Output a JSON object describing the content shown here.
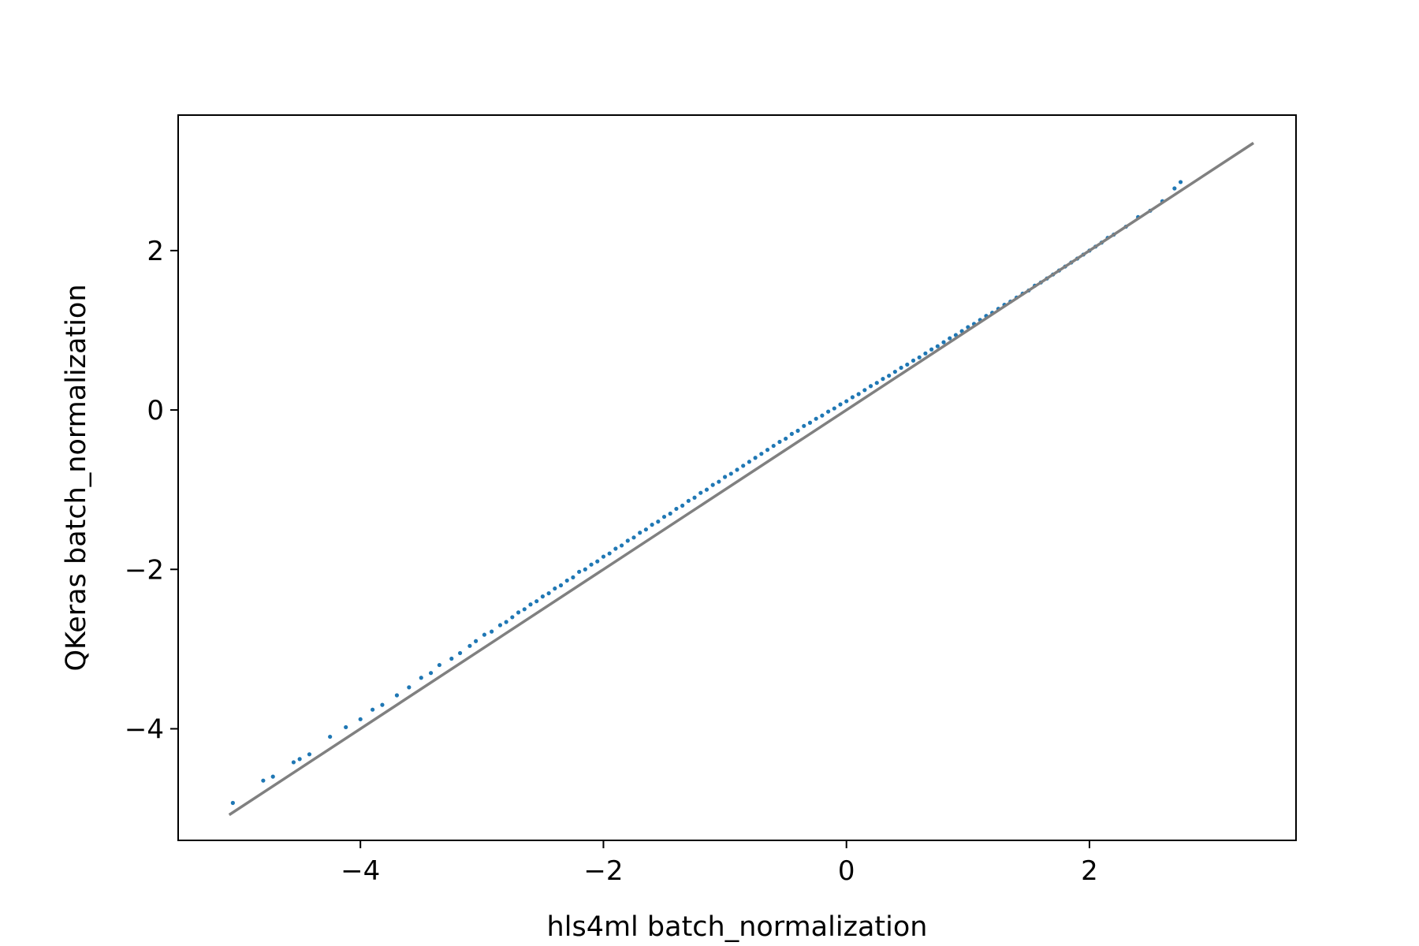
{
  "chart_data": {
    "type": "scatter",
    "xlabel": "hls4ml batch_normalization",
    "ylabel": "QKeras batch_normalization",
    "xlim": [
      -5.5,
      3.7
    ],
    "ylim": [
      -5.4,
      3.7
    ],
    "x_ticks": [
      {
        "value": -4,
        "label": "−4"
      },
      {
        "value": -2,
        "label": "−2"
      },
      {
        "value": 0,
        "label": "0"
      },
      {
        "value": 2,
        "label": "2"
      }
    ],
    "y_ticks": [
      {
        "value": -4,
        "label": "−4"
      },
      {
        "value": -2,
        "label": "−2"
      },
      {
        "value": 0,
        "label": "0"
      },
      {
        "value": 2,
        "label": "2"
      }
    ],
    "grid": false,
    "reference_line": {
      "x": [
        -5.08,
        3.35
      ],
      "y": [
        -5.08,
        3.35
      ],
      "color": "#808080"
    },
    "series": [
      {
        "color": "#1f77b4",
        "points": [
          [
            -5.05,
            -4.93
          ],
          [
            -4.8,
            -4.65
          ],
          [
            -4.72,
            -4.6
          ],
          [
            -4.55,
            -4.42
          ],
          [
            -4.5,
            -4.38
          ],
          [
            -4.42,
            -4.32
          ],
          [
            -4.25,
            -4.1
          ],
          [
            -4.12,
            -3.98
          ],
          [
            -4.0,
            -3.88
          ],
          [
            -3.9,
            -3.76
          ],
          [
            -3.82,
            -3.7
          ],
          [
            -3.7,
            -3.58
          ],
          [
            -3.6,
            -3.48
          ],
          [
            -3.5,
            -3.36
          ],
          [
            -3.42,
            -3.3
          ],
          [
            -3.35,
            -3.2
          ],
          [
            -3.25,
            -3.12
          ],
          [
            -3.18,
            -3.05
          ],
          [
            -3.1,
            -2.96
          ],
          [
            -3.05,
            -2.9
          ],
          [
            -2.98,
            -2.82
          ],
          [
            -2.92,
            -2.78
          ],
          [
            -2.85,
            -2.7
          ],
          [
            -2.8,
            -2.66
          ],
          [
            -2.75,
            -2.6
          ],
          [
            -2.7,
            -2.54
          ],
          [
            -2.65,
            -2.5
          ],
          [
            -2.6,
            -2.44
          ],
          [
            -2.55,
            -2.4
          ],
          [
            -2.5,
            -2.34
          ],
          [
            -2.45,
            -2.3
          ],
          [
            -2.4,
            -2.24
          ],
          [
            -2.35,
            -2.2
          ],
          [
            -2.3,
            -2.14
          ],
          [
            -2.25,
            -2.1
          ],
          [
            -2.2,
            -2.03
          ],
          [
            -2.15,
            -2.0
          ],
          [
            -2.1,
            -1.94
          ],
          [
            -2.05,
            -1.9
          ],
          [
            -2.0,
            -1.84
          ],
          [
            -1.95,
            -1.8
          ],
          [
            -1.9,
            -1.74
          ],
          [
            -1.85,
            -1.7
          ],
          [
            -1.8,
            -1.64
          ],
          [
            -1.75,
            -1.6
          ],
          [
            -1.7,
            -1.54
          ],
          [
            -1.65,
            -1.5
          ],
          [
            -1.6,
            -1.44
          ],
          [
            -1.55,
            -1.4
          ],
          [
            -1.5,
            -1.34
          ],
          [
            -1.45,
            -1.3
          ],
          [
            -1.4,
            -1.24
          ],
          [
            -1.35,
            -1.2
          ],
          [
            -1.3,
            -1.14
          ],
          [
            -1.25,
            -1.1
          ],
          [
            -1.2,
            -1.04
          ],
          [
            -1.15,
            -1.0
          ],
          [
            -1.1,
            -0.94
          ],
          [
            -1.05,
            -0.9
          ],
          [
            -1.0,
            -0.84
          ],
          [
            -0.95,
            -0.8
          ],
          [
            -0.9,
            -0.75
          ],
          [
            -0.85,
            -0.7
          ],
          [
            -0.8,
            -0.65
          ],
          [
            -0.75,
            -0.6
          ],
          [
            -0.7,
            -0.55
          ],
          [
            -0.65,
            -0.5
          ],
          [
            -0.6,
            -0.45
          ],
          [
            -0.55,
            -0.4
          ],
          [
            -0.5,
            -0.36
          ],
          [
            -0.45,
            -0.3
          ],
          [
            -0.4,
            -0.26
          ],
          [
            -0.35,
            -0.2
          ],
          [
            -0.3,
            -0.16
          ],
          [
            -0.25,
            -0.11
          ],
          [
            -0.2,
            -0.07
          ],
          [
            -0.15,
            -0.02
          ],
          [
            -0.1,
            0.02
          ],
          [
            -0.05,
            0.07
          ],
          [
            0.0,
            0.11
          ],
          [
            0.05,
            0.16
          ],
          [
            0.1,
            0.2
          ],
          [
            0.15,
            0.25
          ],
          [
            0.2,
            0.3
          ],
          [
            0.25,
            0.34
          ],
          [
            0.3,
            0.39
          ],
          [
            0.35,
            0.43
          ],
          [
            0.4,
            0.48
          ],
          [
            0.45,
            0.53
          ],
          [
            0.5,
            0.57
          ],
          [
            0.55,
            0.62
          ],
          [
            0.6,
            0.66
          ],
          [
            0.65,
            0.71
          ],
          [
            0.7,
            0.76
          ],
          [
            0.75,
            0.8
          ],
          [
            0.8,
            0.85
          ],
          [
            0.85,
            0.9
          ],
          [
            0.9,
            0.94
          ],
          [
            0.95,
            0.99
          ],
          [
            1.0,
            1.04
          ],
          [
            1.05,
            1.08
          ],
          [
            1.1,
            1.13
          ],
          [
            1.15,
            1.18
          ],
          [
            1.2,
            1.22
          ],
          [
            1.25,
            1.27
          ],
          [
            1.3,
            1.32
          ],
          [
            1.35,
            1.36
          ],
          [
            1.4,
            1.41
          ],
          [
            1.45,
            1.46
          ],
          [
            1.5,
            1.5
          ],
          [
            1.55,
            1.56
          ],
          [
            1.6,
            1.6
          ],
          [
            1.65,
            1.65
          ],
          [
            1.7,
            1.7
          ],
          [
            1.75,
            1.75
          ],
          [
            1.8,
            1.8
          ],
          [
            1.85,
            1.85
          ],
          [
            1.9,
            1.9
          ],
          [
            1.95,
            1.95
          ],
          [
            2.0,
            2.0
          ],
          [
            2.05,
            2.05
          ],
          [
            2.1,
            2.1
          ],
          [
            2.15,
            2.16
          ],
          [
            2.2,
            2.2
          ],
          [
            2.3,
            2.3
          ],
          [
            2.4,
            2.42
          ],
          [
            2.5,
            2.5
          ],
          [
            2.6,
            2.62
          ],
          [
            2.7,
            2.78
          ],
          [
            2.75,
            2.86
          ]
        ]
      }
    ]
  }
}
